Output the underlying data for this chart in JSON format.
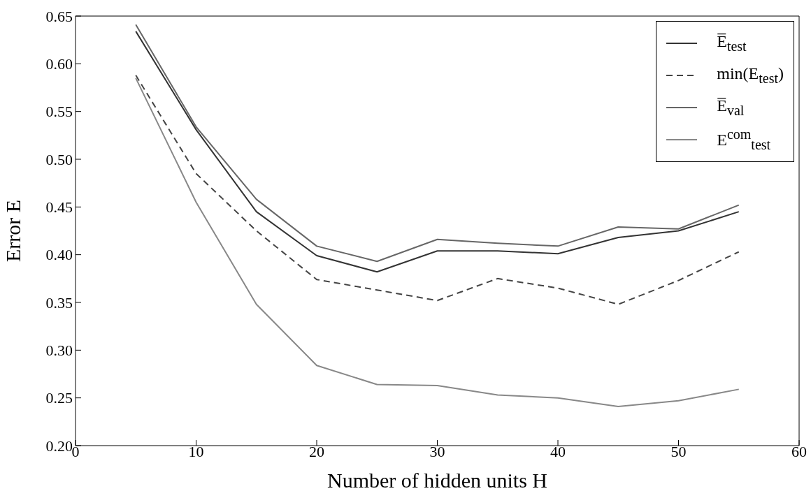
{
  "chart_data": {
    "type": "line",
    "xlabel": "Number of hidden units H",
    "ylabel": "Error E",
    "x": [
      5,
      10,
      15,
      20,
      25,
      30,
      35,
      40,
      45,
      50,
      55
    ],
    "series": [
      {
        "name": "E̅$_{test}$",
        "color": "#333333",
        "values": [
          0.634,
          0.531,
          0.445,
          0.399,
          0.382,
          0.404,
          0.404,
          0.401,
          0.418,
          0.425,
          0.445
        ]
      },
      {
        "name": "min(E$_{test}$)",
        "color": "#444444",
        "line_style": "dashed",
        "values": [
          0.588,
          0.485,
          0.425,
          0.374,
          0.363,
          0.352,
          0.375,
          0.365,
          0.348,
          0.373,
          0.403
        ]
      },
      {
        "name": "E̅$_{val}$",
        "color": "#666666",
        "values": [
          0.641,
          0.534,
          0.458,
          0.409,
          0.393,
          0.416,
          0.412,
          0.409,
          0.429,
          0.427,
          0.452
        ]
      },
      {
        "name": "E$^{com}$$_{test}$",
        "color": "#888888",
        "values": [
          0.585,
          0.455,
          0.348,
          0.284,
          0.264,
          0.263,
          0.253,
          0.25,
          0.241,
          0.247,
          0.259
        ]
      }
    ],
    "xlim": [
      0,
      60
    ],
    "xticks": [
      0,
      10,
      20,
      30,
      40,
      50,
      60
    ],
    "ylim": [
      0.2,
      0.65
    ],
    "yticks": [
      {
        "value": 0.2,
        "label": "0.20"
      },
      {
        "value": 0.25,
        "label": "0.25"
      },
      {
        "value": 0.3,
        "label": "0.30"
      },
      {
        "value": 0.35,
        "label": "0.35"
      },
      {
        "value": 0.4,
        "label": "0.40"
      },
      {
        "value": 0.45,
        "label": "0.45"
      },
      {
        "value": 0.5,
        "label": "0.50"
      },
      {
        "value": 0.55,
        "label": "0.55"
      },
      {
        "value": 0.6,
        "label": "0.60"
      },
      {
        "value": 0.65,
        "label": "0.65"
      }
    ],
    "grid": false,
    "legend": "top right",
    "marker": "none",
    "line_style": "solid"
  }
}
